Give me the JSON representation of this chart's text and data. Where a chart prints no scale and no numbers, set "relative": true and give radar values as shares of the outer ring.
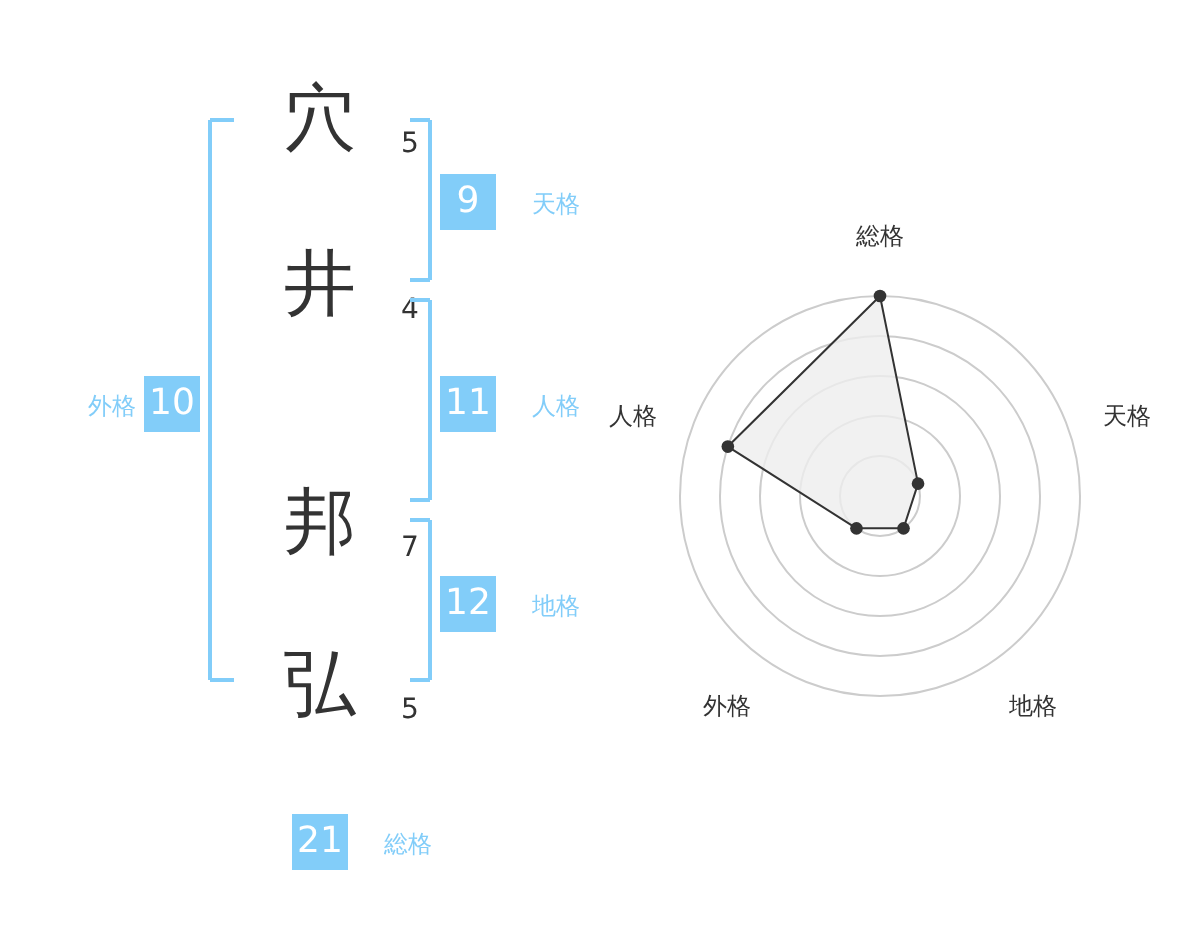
{
  "chart_data": [
    {
      "type": "other",
      "categories": [
        "穴",
        "井",
        "邦",
        "弘"
      ],
      "values": [
        5,
        4,
        7,
        5
      ],
      "data_labels": true,
      "color": "#82cdf9",
      "annotations": [
        "9",
        "天格",
        "11",
        "人格",
        "12",
        "地格",
        "10",
        "外格",
        "21",
        "総格"
      ]
    },
    {
      "type": "radar",
      "categories": [
        "総格",
        "天格",
        "地格",
        "外格",
        "人格"
      ],
      "relative": true,
      "grid": true,
      "marker": "circle",
      "series": [
        {
          "color": "#333333",
          "values": [
            1,
            0.2,
            0.2,
            0.2,
            0.8
          ]
        }
      ]
    }
  ]
}
